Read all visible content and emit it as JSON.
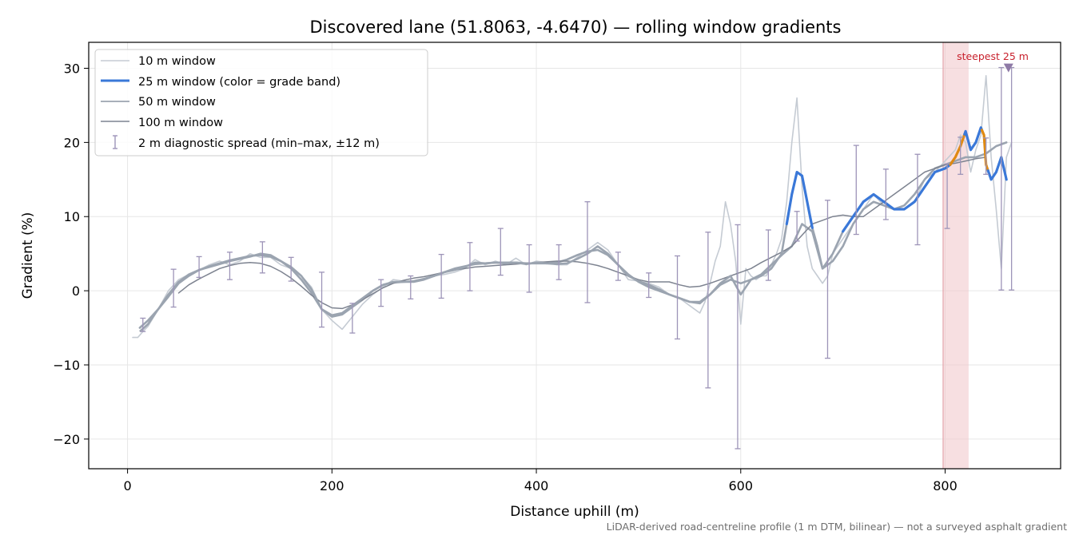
{
  "chart_data": {
    "type": "line",
    "title": "Discovered lane (51.8063, -4.6470) — rolling window gradients",
    "xlabel": "Distance uphill (m)",
    "ylabel": "Gradient (%)",
    "xlim": [
      -38,
      913
    ],
    "ylim": [
      -24,
      33.5
    ],
    "xticks": [
      0,
      200,
      400,
      600,
      800
    ],
    "yticks": [
      -20,
      -10,
      0,
      10,
      20,
      30
    ],
    "xtick_labels": [
      "0",
      "200",
      "400",
      "600",
      "800"
    ],
    "ytick_labels": [
      "−20",
      "−10",
      "0",
      "10",
      "20",
      "30"
    ],
    "grid": true,
    "legend_position": "top-left",
    "footnote": "LiDAR-derived road-centreline profile (1 m DTM, bilinear) — not a surveyed asphalt gradient",
    "colors": {
      "w10": "#c5cbd3",
      "w25_blue": "#3a78d8",
      "w25_orange": "#e08a12",
      "w50": "#9ba4b0",
      "w100": "#7d8390",
      "errorbar": "#9d94b8",
      "highlight": "#f2c9cd",
      "marker": "#8e7aa6"
    },
    "series": [
      {
        "name": "10 m window",
        "x": [
          5,
          10,
          15,
          20,
          30,
          40,
          50,
          60,
          70,
          80,
          90,
          100,
          110,
          120,
          130,
          140,
          150,
          160,
          170,
          180,
          190,
          200,
          210,
          220,
          230,
          240,
          250,
          260,
          270,
          280,
          290,
          300,
          310,
          320,
          330,
          340,
          350,
          360,
          370,
          380,
          390,
          400,
          410,
          420,
          430,
          440,
          450,
          460,
          470,
          480,
          490,
          500,
          510,
          520,
          530,
          540,
          550,
          560,
          565,
          570,
          575,
          580,
          585,
          590,
          595,
          600,
          605,
          610,
          615,
          620,
          625,
          630,
          635,
          640,
          645,
          650,
          655,
          660,
          665,
          670,
          675,
          680,
          685,
          690,
          700,
          710,
          720,
          730,
          740,
          750,
          760,
          770,
          780,
          790,
          800,
          810,
          815,
          820,
          825,
          830,
          835,
          840,
          845,
          850,
          855,
          860,
          865
        ],
        "y": [
          -6.3,
          -6.3,
          -5.5,
          -4.8,
          -2.5,
          0,
          1.5,
          2.2,
          2.8,
          3.5,
          4,
          3.5,
          4,
          5,
          4.5,
          4.5,
          3.5,
          3,
          2,
          0.5,
          -2.5,
          -4,
          -5.2,
          -3.5,
          -1.8,
          -0.5,
          0.5,
          1.5,
          1.3,
          1.2,
          1.5,
          2,
          2.2,
          2.5,
          3,
          4.2,
          3.5,
          4,
          3.5,
          4.4,
          3.5,
          4,
          3.8,
          3.5,
          3.5,
          4.5,
          5.5,
          6.5,
          5.5,
          3.5,
          1.5,
          1.3,
          1,
          0.5,
          -0.5,
          -1,
          -2,
          -3,
          -1.5,
          1,
          4,
          6,
          12,
          9,
          4,
          -4.5,
          3,
          2,
          1.5,
          2,
          2,
          3.5,
          5,
          7,
          12,
          20,
          26,
          14,
          6,
          3,
          2,
          1,
          2,
          5,
          7,
          9,
          11,
          13,
          11.5,
          11,
          11,
          12,
          15,
          16,
          17.5,
          19,
          21,
          20,
          16,
          19,
          21,
          29,
          18,
          11,
          3,
          18,
          20
        ]
      },
      {
        "name": "25 m window (color = grade band)",
        "x": [
          12,
          20,
          30,
          40,
          50,
          60,
          70,
          80,
          90,
          100,
          110,
          120,
          130,
          140,
          150,
          160,
          170,
          180,
          190,
          200,
          210,
          220,
          230,
          240,
          250,
          260,
          270,
          280,
          290,
          300,
          310,
          320,
          330,
          340,
          350,
          360,
          370,
          380,
          390,
          400,
          410,
          420,
          430,
          440,
          450,
          460,
          470,
          480,
          490,
          500,
          510,
          520,
          530,
          540,
          550,
          560,
          570,
          580,
          590,
          600,
          610,
          620,
          630,
          640,
          645,
          650,
          655,
          660,
          665,
          670,
          675,
          680,
          690,
          700,
          710,
          720,
          730,
          740,
          750,
          760,
          770,
          780,
          790,
          800,
          805,
          810,
          815,
          820,
          825,
          830,
          835,
          838,
          840,
          845,
          850,
          855,
          860
        ],
        "y": [
          -5.5,
          -4.5,
          -2.5,
          -0.5,
          1.2,
          2.2,
          2.8,
          3.2,
          3.6,
          4,
          4.3,
          4.6,
          5,
          4.8,
          4,
          3.2,
          2,
          0.2,
          -2.5,
          -3.3,
          -3,
          -2,
          -1,
          0,
          0.8,
          1.2,
          1.2,
          1.2,
          1.5,
          2,
          2.5,
          2.8,
          3.2,
          3.8,
          3.7,
          3.8,
          3.7,
          3.8,
          3.6,
          3.8,
          3.7,
          3.6,
          3.7,
          4.3,
          5,
          6,
          5,
          3.5,
          2,
          1.3,
          0.8,
          0.2,
          -0.5,
          -1,
          -1.5,
          -1.7,
          -0.5,
          1,
          2,
          -0.5,
          1.5,
          2,
          3,
          5,
          9,
          13,
          16,
          15.5,
          12,
          8.5,
          6,
          3,
          5,
          8,
          10,
          12,
          13,
          12,
          11,
          11,
          12,
          14,
          16,
          16.5,
          17,
          18,
          19.5,
          21.5,
          19,
          20,
          22,
          21,
          17,
          15,
          16,
          18,
          15
        ],
        "bands": [
          {
            "from": 0,
            "to": 805,
            "color": "blue"
          },
          {
            "from": 805,
            "to": 818,
            "color": "orange"
          },
          {
            "from": 818,
            "to": 836,
            "color": "blue"
          },
          {
            "from": 836,
            "to": 842,
            "color": "orange"
          },
          {
            "from": 842,
            "to": 860,
            "color": "blue"
          }
        ]
      },
      {
        "name": "50 m window",
        "x": [
          12,
          20,
          30,
          40,
          50,
          60,
          70,
          80,
          90,
          100,
          110,
          120,
          130,
          140,
          150,
          160,
          170,
          180,
          190,
          200,
          210,
          220,
          230,
          240,
          250,
          260,
          270,
          280,
          290,
          300,
          310,
          320,
          330,
          340,
          350,
          360,
          370,
          380,
          390,
          400,
          410,
          420,
          430,
          440,
          450,
          460,
          470,
          480,
          490,
          500,
          510,
          520,
          530,
          540,
          550,
          560,
          570,
          580,
          590,
          600,
          610,
          620,
          630,
          640,
          650,
          660,
          670,
          680,
          690,
          700,
          710,
          720,
          730,
          740,
          750,
          760,
          770,
          780,
          790,
          800,
          810,
          820,
          830,
          840,
          850,
          860
        ],
        "y": [
          -5,
          -4,
          -2.5,
          -0.8,
          1,
          2,
          2.8,
          3.3,
          3.7,
          4.1,
          4.4,
          4.7,
          4.8,
          4.6,
          4,
          3,
          1.5,
          -0.3,
          -2.5,
          -3.5,
          -3.2,
          -2.2,
          -1.2,
          0,
          0.8,
          1.1,
          1.2,
          1.3,
          1.6,
          2,
          2.5,
          3,
          3.3,
          3.6,
          3.7,
          3.8,
          3.8,
          3.8,
          3.7,
          3.7,
          3.7,
          3.8,
          4.2,
          4.8,
          5.3,
          5.5,
          4.8,
          3.5,
          2.2,
          1.2,
          0.5,
          0,
          -0.5,
          -1,
          -1.5,
          -1.5,
          -0.5,
          0.8,
          1.5,
          1,
          1.5,
          2.2,
          3.5,
          4.8,
          6,
          9,
          8,
          3,
          4,
          6,
          9,
          11,
          12,
          11.5,
          11,
          11.5,
          13,
          15,
          16.5,
          17,
          17.5,
          18,
          18,
          18.5,
          19.5,
          20
        ]
      },
      {
        "name": "100 m window",
        "x": [
          50,
          60,
          70,
          80,
          90,
          100,
          110,
          120,
          130,
          140,
          150,
          160,
          170,
          180,
          190,
          200,
          210,
          220,
          230,
          240,
          250,
          260,
          270,
          280,
          290,
          300,
          310,
          320,
          330,
          340,
          350,
          360,
          370,
          380,
          390,
          400,
          410,
          420,
          430,
          440,
          450,
          460,
          470,
          480,
          490,
          500,
          510,
          520,
          530,
          540,
          550,
          560,
          570,
          580,
          590,
          600,
          610,
          620,
          630,
          640,
          650,
          660,
          670,
          680,
          690,
          700,
          710,
          720,
          730,
          740,
          750,
          760,
          770,
          780,
          790,
          800,
          810,
          820,
          830,
          840
        ],
        "y": [
          -0.3,
          0.8,
          1.6,
          2.3,
          3,
          3.4,
          3.7,
          3.8,
          3.7,
          3.3,
          2.6,
          1.7,
          0.6,
          -0.6,
          -1.6,
          -2.3,
          -2.4,
          -1.9,
          -1.2,
          -0.4,
          0.4,
          1,
          1.4,
          1.7,
          1.9,
          2.2,
          2.5,
          2.8,
          3,
          3.2,
          3.3,
          3.4,
          3.5,
          3.6,
          3.7,
          3.8,
          3.9,
          4,
          4,
          3.9,
          3.7,
          3.4,
          3,
          2.5,
          2,
          1.5,
          1.2,
          1.2,
          1.2,
          0.8,
          0.5,
          0.6,
          1,
          1.5,
          2,
          2.5,
          3,
          3.8,
          4.5,
          5.2,
          6,
          7.5,
          9,
          9.5,
          10,
          10.2,
          10,
          10,
          11,
          12,
          13,
          14,
          15,
          16,
          16.5,
          17,
          17.2,
          17.5,
          17.8,
          18
        ]
      }
    ],
    "errorbars": {
      "name": "2 m diagnostic spread (min–max, ±12 m)",
      "points": [
        {
          "x": 15,
          "lo": -5.5,
          "hi": -3.7
        },
        {
          "x": 45,
          "lo": -2.2,
          "hi": 2.9
        },
        {
          "x": 70,
          "lo": 1.8,
          "hi": 4.6
        },
        {
          "x": 100,
          "lo": 1.5,
          "hi": 5.2
        },
        {
          "x": 132,
          "lo": 2.4,
          "hi": 6.6
        },
        {
          "x": 160,
          "lo": 1.3,
          "hi": 4.5
        },
        {
          "x": 190,
          "lo": -4.9,
          "hi": 2.5
        },
        {
          "x": 220,
          "lo": -5.7,
          "hi": -1.7
        },
        {
          "x": 248,
          "lo": -2.1,
          "hi": 1.5
        },
        {
          "x": 277,
          "lo": -1.1,
          "hi": 2
        },
        {
          "x": 307,
          "lo": -1,
          "hi": 4.9
        },
        {
          "x": 335,
          "lo": 0,
          "hi": 6.5
        },
        {
          "x": 365,
          "lo": 2.1,
          "hi": 8.4
        },
        {
          "x": 393,
          "lo": -0.2,
          "hi": 6.2
        },
        {
          "x": 422,
          "lo": 1.5,
          "hi": 6.2
        },
        {
          "x": 450,
          "lo": -1.6,
          "hi": 12
        },
        {
          "x": 480,
          "lo": 1.4,
          "hi": 5.2
        },
        {
          "x": 510,
          "lo": -0.9,
          "hi": 2.4
        },
        {
          "x": 538,
          "lo": -6.5,
          "hi": 4.7
        },
        {
          "x": 568,
          "lo": -13.1,
          "hi": 7.9
        },
        {
          "x": 597,
          "lo": -21.3,
          "hi": 8.9
        },
        {
          "x": 627,
          "lo": 1.4,
          "hi": 8.2
        },
        {
          "x": 655,
          "lo": 6.7,
          "hi": 10.7
        },
        {
          "x": 685,
          "lo": -9.1,
          "hi": 12.2
        },
        {
          "x": 713,
          "lo": 7.6,
          "hi": 19.6
        },
        {
          "x": 742,
          "lo": 9.6,
          "hi": 16.4
        },
        {
          "x": 773,
          "lo": 6.2,
          "hi": 18.4
        },
        {
          "x": 802,
          "lo": 8.4,
          "hi": 17.1
        },
        {
          "x": 815,
          "lo": 15.7,
          "hi": 20.7
        },
        {
          "x": 840,
          "lo": 15.7,
          "hi": 20.6
        },
        {
          "x": 855,
          "lo": 0.1,
          "hi": 30.1
        },
        {
          "x": 865,
          "lo": 0.1,
          "hi": 30.1
        }
      ]
    },
    "highlight": {
      "label": "steepest 25 m",
      "x_from": 798,
      "x_to": 823,
      "marker_x": 862,
      "marker_y": 30.1
    }
  }
}
